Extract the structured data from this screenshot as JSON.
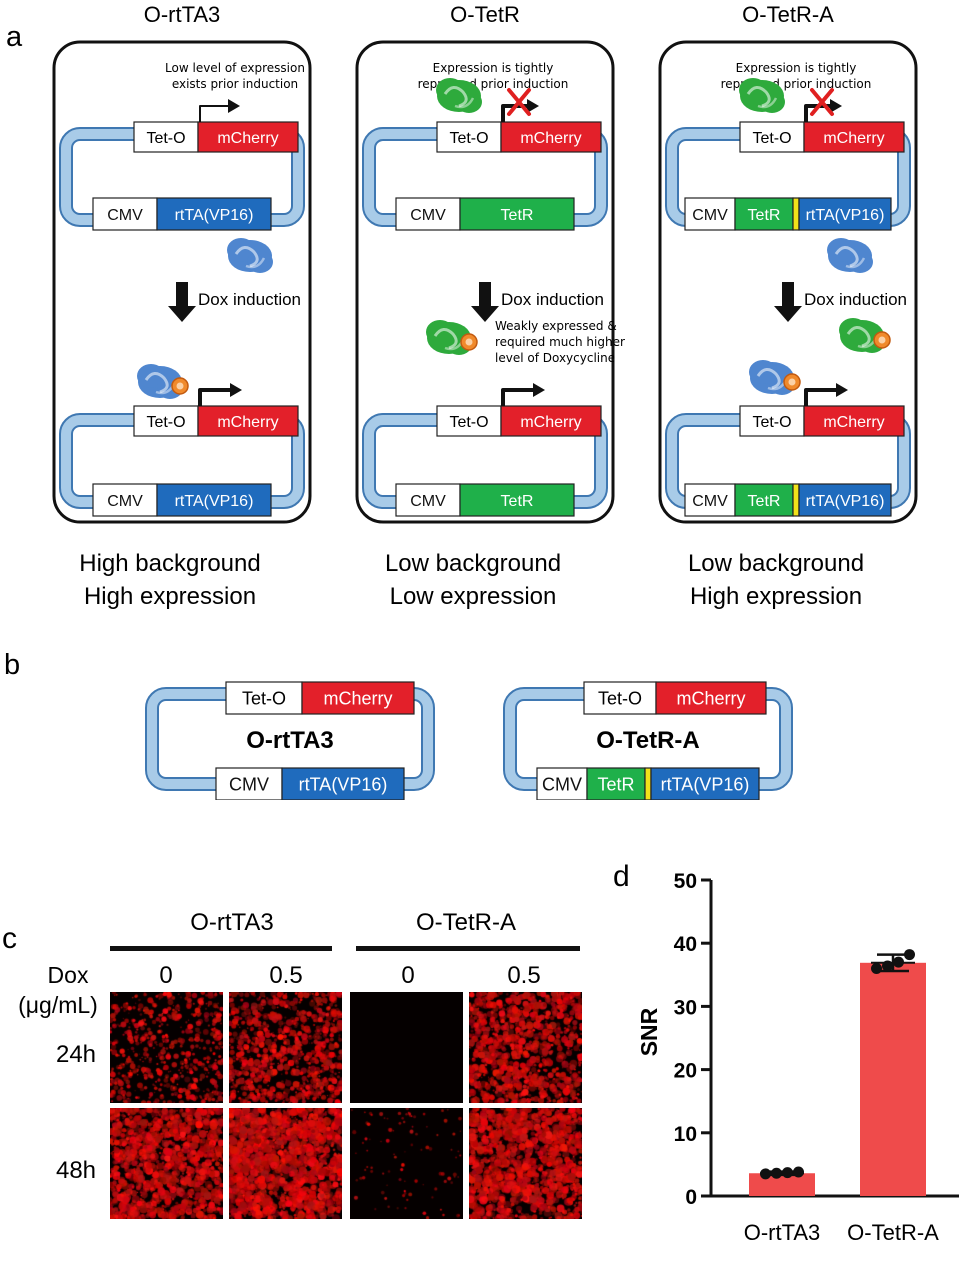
{
  "colors": {
    "mcherry": "#e3202a",
    "rtta": "#1f6bbd",
    "tetr": "#1fb04a",
    "plasmid": "#a8cbe8",
    "plasmid_edge": "#3f78b2",
    "linker": "#f2e21a",
    "bar": "#ef4b4b",
    "tetr_protein": "#2eaa3c",
    "rtta_protein": "#4f86cf",
    "dox": "#f08a2c"
  },
  "panel_a": {
    "letter": "a",
    "columns": [
      {
        "title": "O-rtTA3",
        "note_lines": [
          "Low level of expression",
          "exists prior induction"
        ],
        "top": {
          "promoter": "Tet-O",
          "gene": "mCherry"
        },
        "bottom": [
          {
            "label": "CMV",
            "kind": "promoter"
          },
          {
            "label": "rtTA(VP16)",
            "kind": "rtta"
          }
        ],
        "arrow_label": "Dox induction",
        "induced_note_lines": [],
        "induced_top": {
          "promoter": "Tet-O",
          "gene": "mCherry"
        },
        "induced_bottom": [
          {
            "label": "CMV",
            "kind": "promoter"
          },
          {
            "label": "rtTA(VP16)",
            "kind": "rtta"
          }
        ],
        "summary": [
          "High background",
          "High expression"
        ]
      },
      {
        "title": "O-TetR",
        "note_lines": [
          "Expression is tightly",
          "repressed prior induction"
        ],
        "top": {
          "promoter": "Tet-O",
          "gene": "mCherry"
        },
        "bottom": [
          {
            "label": "CMV",
            "kind": "promoter"
          },
          {
            "label": "TetR",
            "kind": "tetr"
          }
        ],
        "arrow_label": "Dox induction",
        "induced_note_lines": [
          "Weakly expressed &",
          "required much higher",
          "level of Doxycycline"
        ],
        "induced_top": {
          "promoter": "Tet-O",
          "gene": "mCherry"
        },
        "induced_bottom": [
          {
            "label": "CMV",
            "kind": "promoter"
          },
          {
            "label": "TetR",
            "kind": "tetr"
          }
        ],
        "summary": [
          "Low background",
          "Low expression"
        ]
      },
      {
        "title": "O-TetR-A",
        "note_lines": [
          "Expression is tightly",
          "repressed prior induction"
        ],
        "top": {
          "promoter": "Tet-O",
          "gene": "mCherry"
        },
        "bottom": [
          {
            "label": "CMV",
            "kind": "promoter"
          },
          {
            "label": "TetR",
            "kind": "tetr"
          },
          {
            "label": "",
            "kind": "linker"
          },
          {
            "label": "rtTA(VP16)",
            "kind": "rtta"
          }
        ],
        "arrow_label": "Dox induction",
        "induced_note_lines": [],
        "induced_top": {
          "promoter": "Tet-O",
          "gene": "mCherry"
        },
        "induced_bottom": [
          {
            "label": "CMV",
            "kind": "promoter"
          },
          {
            "label": "TetR",
            "kind": "tetr"
          },
          {
            "label": "",
            "kind": "linker"
          },
          {
            "label": "rtTA(VP16)",
            "kind": "rtta"
          }
        ],
        "summary": [
          "Low background",
          "High expression"
        ]
      }
    ]
  },
  "panel_b": {
    "letter": "b",
    "constructs": [
      {
        "name": "O-rtTA3",
        "top": {
          "promoter": "Tet-O",
          "gene": "mCherry"
        },
        "bottom": [
          {
            "label": "CMV",
            "kind": "promoter"
          },
          {
            "label": "rtTA(VP16)",
            "kind": "rtta"
          }
        ]
      },
      {
        "name": "O-TetR-A",
        "top": {
          "promoter": "Tet-O",
          "gene": "mCherry"
        },
        "bottom": [
          {
            "label": "CMV",
            "kind": "promoter"
          },
          {
            "label": "TetR",
            "kind": "tetr"
          },
          {
            "label": "",
            "kind": "linker"
          },
          {
            "label": "rtTA(VP16)",
            "kind": "rtta"
          }
        ]
      }
    ]
  },
  "panel_c": {
    "letter": "c",
    "groups": [
      "O-rtTA3",
      "O-TetR-A"
    ],
    "dox_label_lines": [
      "Dox",
      "(μg/mL)"
    ],
    "dox_values": [
      "0",
      "0.5",
      "0",
      "0.5"
    ],
    "rows": [
      {
        "label": "24h",
        "intensities": [
          0.42,
          0.6,
          0.0,
          0.72
        ]
      },
      {
        "label": "48h",
        "intensities": [
          0.82,
          0.95,
          0.07,
          0.88
        ]
      }
    ]
  },
  "panel_d": {
    "letter": "d",
    "chart_data": {
      "type": "bar",
      "categories": [
        "O-rtTA3",
        "O-TetR-A"
      ],
      "values": [
        3.6,
        36.9
      ],
      "error": [
        0.25,
        1.3
      ],
      "points": [
        [
          3.5,
          3.6,
          3.7,
          3.8
        ],
        [
          36.0,
          36.4,
          37.0,
          38.2
        ]
      ],
      "ylabel": "SNR",
      "ylim": [
        0,
        50
      ],
      "yticks": [
        "0",
        "10",
        "20",
        "30",
        "40",
        "50"
      ]
    }
  }
}
